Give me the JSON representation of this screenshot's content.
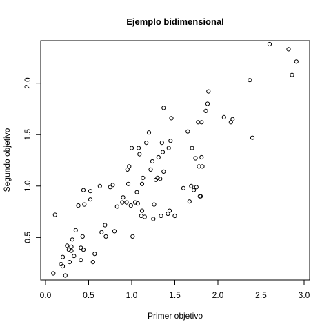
{
  "chart_data": {
    "type": "scatter",
    "title": "Ejemplo bidimensional",
    "xlabel": "Primer objetivo",
    "ylabel": "Segundo objetivo",
    "xlim": [
      0.0,
      3.0
    ],
    "ylim": [
      0.1,
      2.4
    ],
    "x_ticks": [
      {
        "value": 0.0,
        "label": "0.0"
      },
      {
        "value": 0.5,
        "label": "0.5"
      },
      {
        "value": 1.0,
        "label": "1.0"
      },
      {
        "value": 1.5,
        "label": "1.5"
      },
      {
        "value": 2.0,
        "label": "2.0"
      },
      {
        "value": 2.5,
        "label": "2.5"
      },
      {
        "value": 3.0,
        "label": "3.0"
      }
    ],
    "y_ticks": [
      {
        "value": 0.5,
        "label": "0.5"
      },
      {
        "value": 1.0,
        "label": "1.0"
      },
      {
        "value": 1.5,
        "label": "1.5"
      },
      {
        "value": 2.0,
        "label": "2.0"
      }
    ],
    "grid": false,
    "points": [
      [
        0.09,
        0.15
      ],
      [
        0.11,
        0.72
      ],
      [
        0.18,
        0.24
      ],
      [
        0.2,
        0.31
      ],
      [
        0.2,
        0.22
      ],
      [
        0.23,
        0.13
      ],
      [
        0.25,
        0.42
      ],
      [
        0.27,
        0.38
      ],
      [
        0.28,
        0.26
      ],
      [
        0.3,
        0.37
      ],
      [
        0.3,
        0.41
      ],
      [
        0.31,
        0.48
      ],
      [
        0.33,
        0.32
      ],
      [
        0.35,
        0.57
      ],
      [
        0.38,
        0.81
      ],
      [
        0.41,
        0.4
      ],
      [
        0.41,
        0.28
      ],
      [
        0.43,
        0.51
      ],
      [
        0.44,
        0.38
      ],
      [
        0.44,
        0.96
      ],
      [
        0.45,
        0.82
      ],
      [
        0.52,
        0.87
      ],
      [
        0.52,
        0.95
      ],
      [
        0.55,
        0.26
      ],
      [
        0.57,
        0.34
      ],
      [
        0.63,
        1.0
      ],
      [
        0.65,
        0.55
      ],
      [
        0.69,
        0.62
      ],
      [
        0.7,
        0.51
      ],
      [
        0.75,
        0.99
      ],
      [
        0.78,
        1.01
      ],
      [
        0.8,
        0.56
      ],
      [
        0.83,
        0.8
      ],
      [
        0.89,
        0.84
      ],
      [
        0.9,
        0.89
      ],
      [
        0.94,
        0.84
      ],
      [
        0.95,
        1.16
      ],
      [
        0.96,
        1.02
      ],
      [
        0.97,
        1.19
      ],
      [
        0.99,
        0.81
      ],
      [
        1.0,
        1.37
      ],
      [
        1.01,
        0.51
      ],
      [
        1.04,
        0.84
      ],
      [
        1.06,
        0.94
      ],
      [
        1.07,
        0.83
      ],
      [
        1.08,
        1.37
      ],
      [
        1.09,
        1.31
      ],
      [
        1.11,
        0.71
      ],
      [
        1.12,
        0.76
      ],
      [
        1.12,
        1.02
      ],
      [
        1.13,
        1.08
      ],
      [
        1.15,
        0.7
      ],
      [
        1.17,
        1.42
      ],
      [
        1.2,
        1.52
      ],
      [
        1.22,
        1.16
      ],
      [
        1.24,
        1.24
      ],
      [
        1.25,
        0.68
      ],
      [
        1.26,
        0.82
      ],
      [
        1.28,
        1.06
      ],
      [
        1.3,
        1.08
      ],
      [
        1.31,
        1.28
      ],
      [
        1.33,
        1.07
      ],
      [
        1.34,
        0.71
      ],
      [
        1.35,
        1.42
      ],
      [
        1.36,
        1.33
      ],
      [
        1.37,
        1.76
      ],
      [
        1.37,
        1.14
      ],
      [
        1.42,
        0.73
      ],
      [
        1.43,
        1.37
      ],
      [
        1.44,
        0.76
      ],
      [
        1.45,
        1.44
      ],
      [
        1.46,
        1.66
      ],
      [
        1.5,
        0.71
      ],
      [
        1.6,
        0.98
      ],
      [
        1.65,
        1.53
      ],
      [
        1.67,
        0.85
      ],
      [
        1.69,
        1.0
      ],
      [
        1.7,
        1.37
      ],
      [
        1.72,
        0.96
      ],
      [
        1.74,
        1.27
      ],
      [
        1.75,
        0.99
      ],
      [
        1.77,
        1.62
      ],
      [
        1.78,
        1.19
      ],
      [
        1.79,
        0.9
      ],
      [
        1.8,
        0.9
      ],
      [
        1.81,
        1.62
      ],
      [
        1.81,
        1.28
      ],
      [
        1.82,
        1.19
      ],
      [
        1.86,
        1.73
      ],
      [
        1.88,
        1.8
      ],
      [
        1.89,
        1.92
      ],
      [
        2.07,
        1.67
      ],
      [
        2.15,
        1.62
      ],
      [
        2.17,
        1.65
      ],
      [
        2.37,
        2.03
      ],
      [
        2.4,
        1.47
      ],
      [
        2.6,
        2.38
      ],
      [
        2.82,
        2.33
      ],
      [
        2.86,
        2.08
      ],
      [
        2.91,
        2.21
      ]
    ]
  }
}
